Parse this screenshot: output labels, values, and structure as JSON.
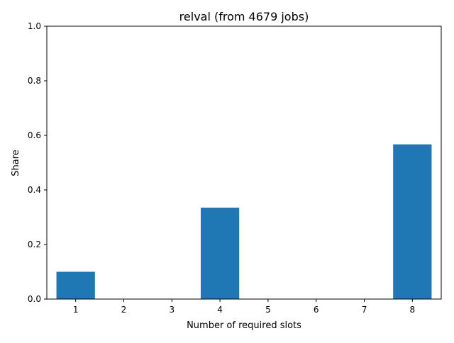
{
  "chart_data": {
    "type": "bar",
    "title": "relval (from 4679 jobs)",
    "xlabel": "Number of required slots",
    "ylabel": "Share",
    "categories": [
      "1",
      "2",
      "3",
      "4",
      "5",
      "6",
      "7",
      "8"
    ],
    "values": [
      0.1,
      0,
      0,
      0.335,
      0,
      0,
      0,
      0.567
    ],
    "ylim": [
      0,
      1
    ],
    "yticks": [
      "0.0",
      "0.2",
      "0.4",
      "0.6",
      "0.8",
      "1.0"
    ],
    "bar_color": "#1f77b4",
    "grid": false,
    "legend": "none"
  }
}
